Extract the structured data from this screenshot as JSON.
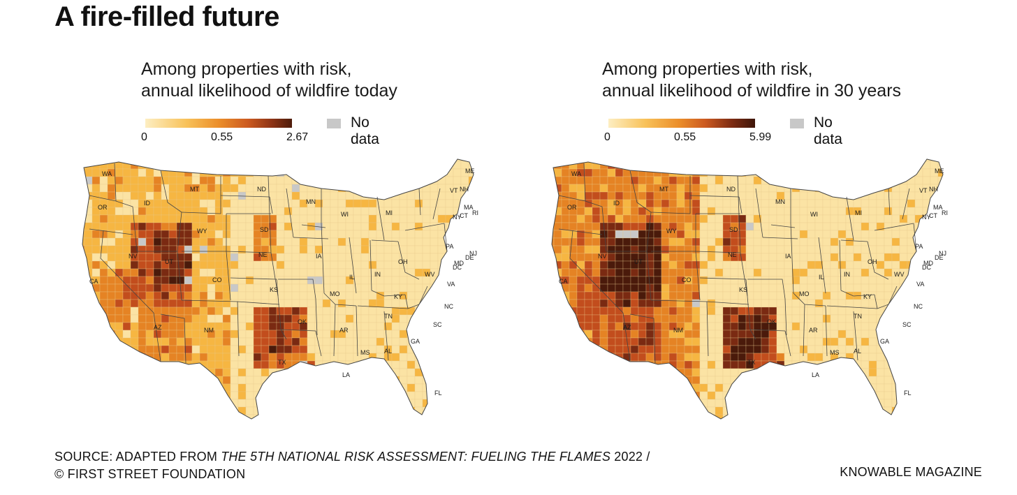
{
  "title": "A fire-filled future",
  "panels": [
    {
      "subtitle_line1": "Among properties with risk,",
      "subtitle_line2": "annual likelihood of wildfire today",
      "legend": {
        "ticks": [
          "0",
          "0.55",
          "2.67"
        ],
        "no_data": "No data"
      }
    },
    {
      "subtitle_line1": "Among properties with risk,",
      "subtitle_line2": "annual likelihood of wildfire in 30 years",
      "legend": {
        "ticks": [
          "0",
          "0.55",
          "5.99"
        ],
        "no_data": "No data"
      }
    }
  ],
  "colors": {
    "scale": [
      "#fbe3a4",
      "#f6b642",
      "#e58324",
      "#c24d1d",
      "#7a2a12",
      "#4a1a0b"
    ],
    "no_data": "#c8c8c8",
    "border": "#444444"
  },
  "state_labels": [
    "WA",
    "OR",
    "CA",
    "ID",
    "NV",
    "MT",
    "WY",
    "UT",
    "AZ",
    "CO",
    "NM",
    "ND",
    "SD",
    "NE",
    "KS",
    "OK",
    "TX",
    "MN",
    "IA",
    "MO",
    "AR",
    "LA",
    "WI",
    "IL",
    "MS",
    "MI",
    "IN",
    "OH",
    "KY",
    "TN",
    "AL",
    "GA",
    "FL",
    "SC",
    "NC",
    "VA",
    "WV",
    "PA",
    "NY",
    "ME",
    "VT",
    "NH",
    "MA",
    "RI",
    "CT",
    "NJ",
    "MD",
    "DE",
    "DC"
  ],
  "source": {
    "prefix": "SOURCE: ADAPTED FROM ",
    "italic": "THE 5TH NATIONAL RISK ASSESSMENT: FUELING THE FLAMES",
    "suffix": " 2022 /",
    "line2": "© FIRST STREET FOUNDATION"
  },
  "credit": "KNOWABLE MAGAZINE"
}
